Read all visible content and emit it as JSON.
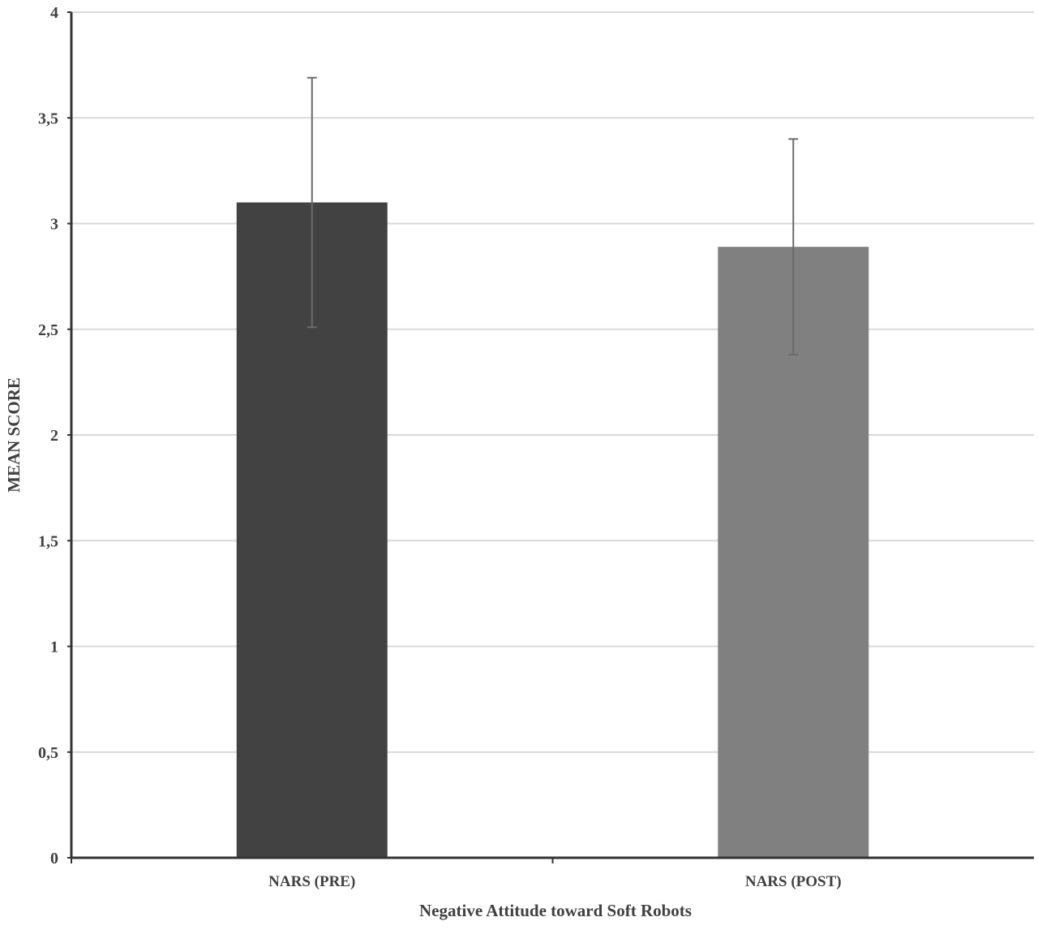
{
  "chart_data": {
    "type": "bar",
    "title": "",
    "xlabel": "Negative Attitude toward Soft Robots",
    "ylabel": "MEAN SCORE",
    "ylim": [
      0,
      4
    ],
    "yticks": [
      0,
      0.5,
      1,
      1.5,
      2,
      2.5,
      3,
      3.5,
      4
    ],
    "ytick_labels": [
      "0",
      "0,5",
      "1",
      "1,5",
      "2",
      "2,5",
      "3",
      "3,5",
      "4"
    ],
    "grid": true,
    "categories": [
      "NARS (PRE)",
      "NARS (POST)"
    ],
    "values": [
      3.1,
      2.89
    ],
    "error_low": [
      2.51,
      2.38
    ],
    "error_high": [
      3.69,
      3.4
    ],
    "colors": [
      "#424242",
      "#808080"
    ]
  }
}
